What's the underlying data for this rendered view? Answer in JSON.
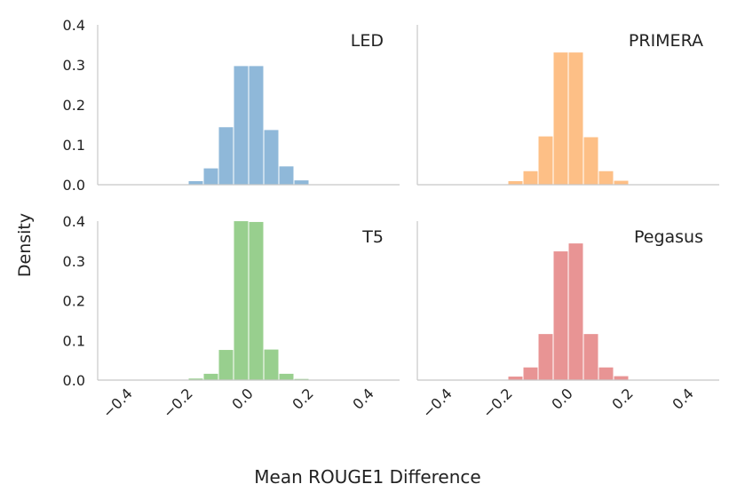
{
  "figure": {
    "ylabel": "Density",
    "xlabel": "Mean ROUGE1 Difference"
  },
  "chart_data": [
    {
      "type": "histogram",
      "title": "LED",
      "color": "#8fb8d9",
      "bins": [
        -0.25,
        -0.2,
        -0.15,
        -0.1,
        -0.05,
        0.0,
        0.05,
        0.1,
        0.15,
        0.2
      ],
      "values": [
        0.002,
        0.01,
        0.042,
        0.145,
        0.298,
        0.298,
        0.138,
        0.047,
        0.012,
        0.002
      ],
      "xlim": [
        -0.5,
        0.5
      ],
      "ylim": [
        0,
        0.4
      ],
      "yticks": [
        "0.0",
        "0.1",
        "0.2",
        "0.3",
        "0.4"
      ],
      "xticks": [],
      "ytick_values": [
        0,
        0.1,
        0.2,
        0.3,
        0.4
      ]
    },
    {
      "type": "histogram",
      "title": "PRIMERA",
      "color": "#fdbf86",
      "bins": [
        -0.25,
        -0.2,
        -0.15,
        -0.1,
        -0.05,
        0.0,
        0.05,
        0.1,
        0.15,
        0.2
      ],
      "values": [
        0.001,
        0.01,
        0.035,
        0.122,
        0.332,
        0.332,
        0.12,
        0.035,
        0.011,
        0.002
      ],
      "xlim": [
        -0.5,
        0.5
      ],
      "ylim": [
        0,
        0.4
      ],
      "yticks": [],
      "xticks": []
    },
    {
      "type": "histogram",
      "title": "T5",
      "color": "#98cf8e",
      "bins": [
        -0.25,
        -0.2,
        -0.15,
        -0.1,
        -0.05,
        0.0,
        0.05,
        0.1,
        0.15,
        0.2
      ],
      "values": [
        0.001,
        0.005,
        0.017,
        0.077,
        0.401,
        0.399,
        0.078,
        0.017,
        0.004,
        0.001
      ],
      "xlim": [
        -0.5,
        0.5
      ],
      "ylim": [
        0,
        0.4
      ],
      "yticks": [
        "0.0",
        "0.1",
        "0.2",
        "0.3",
        "0.4"
      ],
      "ytick_values": [
        0,
        0.1,
        0.2,
        0.3,
        0.4
      ],
      "xticks": [
        "−0.4",
        "−0.2",
        "0.0",
        "0.2",
        "0.4"
      ],
      "xtick_values": [
        -0.4,
        -0.2,
        0.0,
        0.2,
        0.4
      ]
    },
    {
      "type": "histogram",
      "title": "Pegasus",
      "color": "#e89494",
      "bins": [
        -0.25,
        -0.2,
        -0.15,
        -0.1,
        -0.05,
        0.0,
        0.05,
        0.1,
        0.15,
        0.2
      ],
      "values": [
        0.002,
        0.01,
        0.033,
        0.117,
        0.325,
        0.345,
        0.117,
        0.033,
        0.011,
        0.002
      ],
      "xlim": [
        -0.5,
        0.5
      ],
      "ylim": [
        0,
        0.4
      ],
      "yticks": [],
      "xticks": [
        "−0.4",
        "−0.2",
        "0.0",
        "0.2",
        "0.4"
      ],
      "xtick_values": [
        -0.4,
        -0.2,
        0.0,
        0.2,
        0.4
      ]
    }
  ]
}
